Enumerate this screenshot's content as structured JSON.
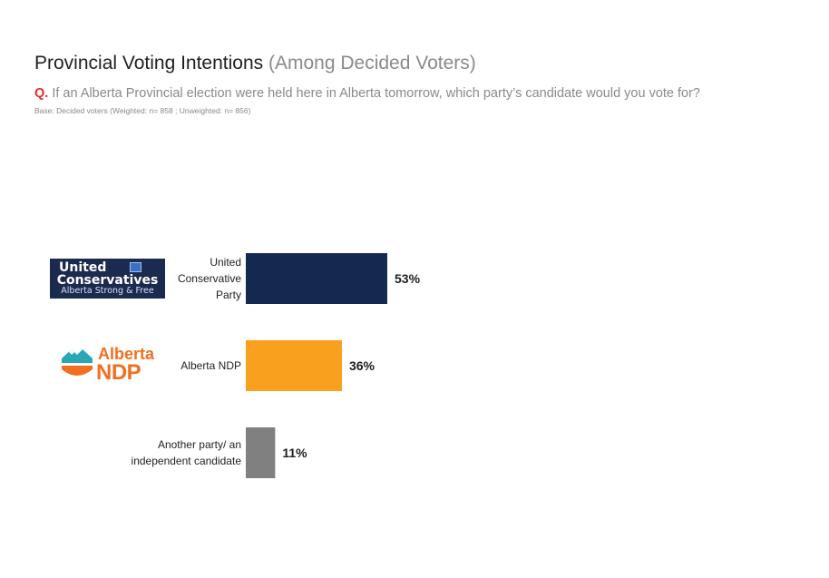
{
  "title": "Provincial Voting Intentions",
  "title_sub": "(Among Decided Voters)",
  "question_prefix": "Q.",
  "question": "If an Alberta Provincial election were held here in Alberta tomorrow, which party’s candidate would you vote for?",
  "base": "Base: Decided voters (Weighted: n= 858 ; Unweighted: n= 856)",
  "logos": {
    "ucp": {
      "line1": "United",
      "line2": "Conservatives",
      "line3": "Alberta Strong & Free"
    },
    "ndp": {
      "line1": "Alberta",
      "line2": "NDP"
    }
  },
  "chart_data": {
    "type": "bar",
    "orientation": "horizontal",
    "categories": [
      [
        "United",
        "Conservative",
        "Party"
      ],
      [
        "Alberta NDP"
      ],
      [
        "Another party/ an",
        "independent candidate"
      ]
    ],
    "values": [
      53,
      36,
      11
    ],
    "value_labels": [
      "53%",
      "36%",
      "11%"
    ],
    "colors": [
      "#14294f",
      "#f9a11f",
      "#808080"
    ],
    "xlim": [
      0,
      100
    ],
    "grid": false,
    "legend": "none"
  }
}
